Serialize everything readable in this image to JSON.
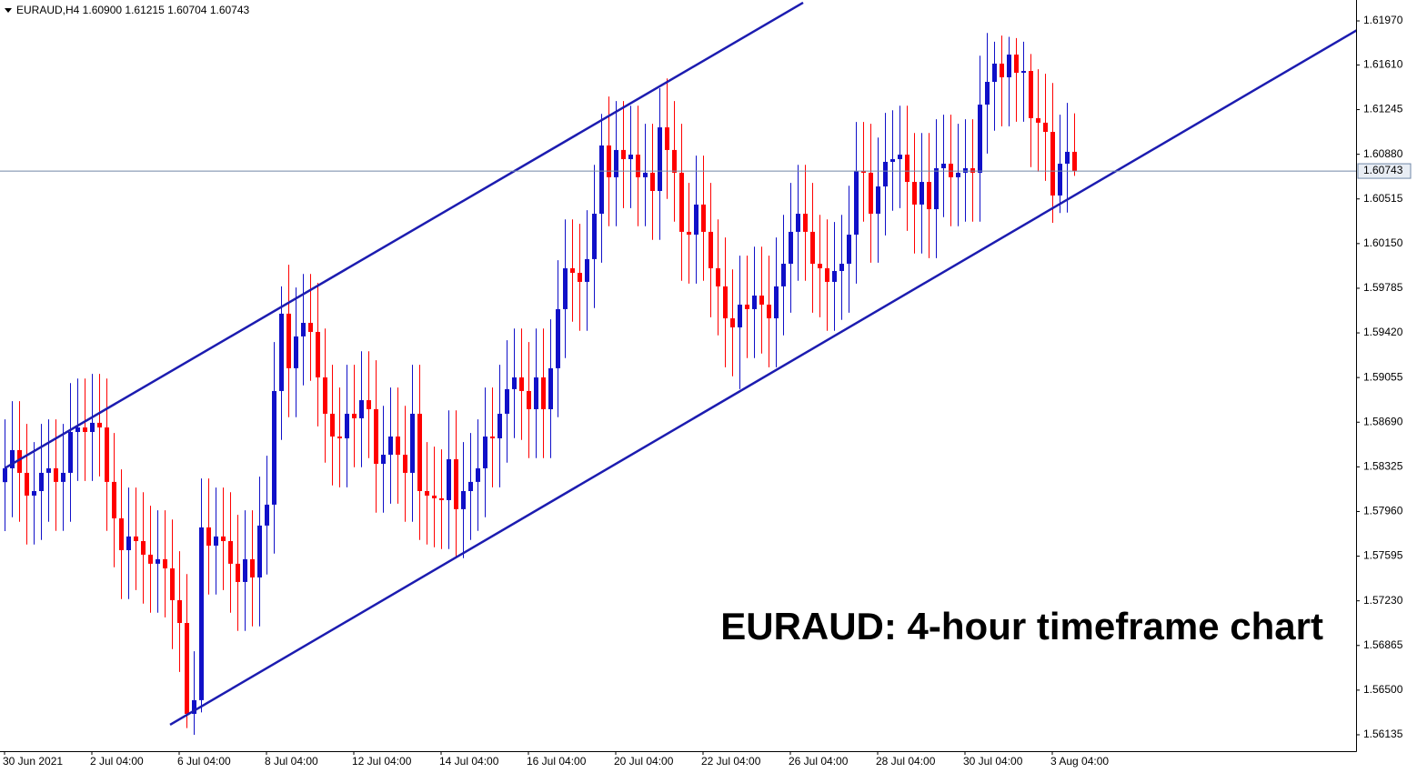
{
  "chart_data": {
    "type": "candlestick",
    "header": "EURAUD,H4  1.60900 1.61215 1.60704 1.60743",
    "annotation": "EURAUD: 4-hour timeframe chart",
    "bull_color": "#1010c8",
    "bear_color": "#ff0000",
    "trendline_color": "#1c1cb0",
    "ylim": [
      1.56001,
      1.62141
    ],
    "yticks": [
      {
        "value": 1.6197,
        "label": "1.61970"
      },
      {
        "value": 1.6161,
        "label": "1.61610"
      },
      {
        "value": 1.61245,
        "label": "1.61245"
      },
      {
        "value": 1.6088,
        "label": "1.60880"
      },
      {
        "value": 1.60515,
        "label": "1.60515"
      },
      {
        "value": 1.6015,
        "label": "1.60150"
      },
      {
        "value": 1.59785,
        "label": "1.59785"
      },
      {
        "value": 1.5942,
        "label": "1.59420"
      },
      {
        "value": 1.59055,
        "label": "1.59055"
      },
      {
        "value": 1.5869,
        "label": "1.58690"
      },
      {
        "value": 1.58325,
        "label": "1.58325"
      },
      {
        "value": 1.5796,
        "label": "1.57960"
      },
      {
        "value": 1.57595,
        "label": "1.57595"
      },
      {
        "value": 1.5723,
        "label": "1.57230"
      },
      {
        "value": 1.56865,
        "label": "1.56865"
      },
      {
        "value": 1.565,
        "label": "1.56500"
      },
      {
        "value": 1.56135,
        "label": "1.56135"
      }
    ],
    "current_price": {
      "value": 1.60743,
      "label": "1.60743"
    },
    "current_price_color": "#7088a8",
    "categories": [
      "30 Jun 2021",
      null,
      null,
      null,
      null,
      null,
      null,
      null,
      null,
      null,
      null,
      null,
      "2 Jul 04:00",
      null,
      null,
      null,
      null,
      null,
      null,
      null,
      null,
      null,
      null,
      null,
      "6 Jul 04:00",
      null,
      null,
      null,
      null,
      null,
      null,
      null,
      null,
      null,
      null,
      null,
      "8 Jul 04:00",
      null,
      null,
      null,
      null,
      null,
      null,
      null,
      null,
      null,
      null,
      null,
      "12 Jul 04:00",
      null,
      null,
      null,
      null,
      null,
      null,
      null,
      null,
      null,
      null,
      null,
      "14 Jul 04:00",
      null,
      null,
      null,
      null,
      null,
      null,
      null,
      null,
      null,
      null,
      null,
      "16 Jul 04:00",
      null,
      null,
      null,
      null,
      null,
      null,
      null,
      null,
      null,
      null,
      null,
      "20 Jul 04:00",
      null,
      null,
      null,
      null,
      null,
      null,
      null,
      null,
      null,
      null,
      null,
      "22 Jul 04:00",
      null,
      null,
      null,
      null,
      null,
      null,
      null,
      null,
      null,
      null,
      null,
      "26 Jul 04:00",
      null,
      null,
      null,
      null,
      null,
      null,
      null,
      null,
      null,
      null,
      null,
      "28 Jul 04:00",
      null,
      null,
      null,
      null,
      null,
      null,
      null,
      null,
      null,
      null,
      null,
      "30 Jul 04:00",
      null,
      null,
      null,
      null,
      null,
      null,
      null,
      null,
      null,
      null,
      null,
      "3 Aug 04:00",
      null,
      null,
      null
    ],
    "open": [
      1.582,
      1.58313,
      1.58462,
      1.58276,
      1.5809,
      1.58127,
      1.58276,
      1.58313,
      1.58202,
      1.58276,
      1.5861,
      1.58647,
      1.5861,
      1.58685,
      1.58647,
      1.58202,
      1.57904,
      1.57644,
      1.57756,
      1.57718,
      1.57607,
      1.57533,
      1.5757,
      1.57495,
      1.57235,
      1.57049,
      1.56306,
      1.56418,
      1.5783,
      1.57681,
      1.57756,
      1.57718,
      1.57533,
      1.57384,
      1.5757,
      1.57421,
      1.57845,
      1.58016,
      1.58945,
      1.59577,
      1.59131,
      1.59391,
      1.59502,
      1.59428,
      1.59056,
      1.58759,
      1.58573,
      1.58558,
      1.58759,
      1.58722,
      1.5887,
      1.58796,
      1.5835,
      1.58424,
      1.58573,
      1.58424,
      1.58276,
      1.58759,
      1.58127,
      1.5809,
      1.58068,
      1.58053,
      1.58387,
      1.57979,
      1.58127,
      1.58202,
      1.58313,
      1.58573,
      1.58558,
      1.58759,
      1.5896,
      1.59056,
      1.58945,
      1.58796,
      1.59056,
      1.58796,
      1.59131,
      1.59614,
      1.59948,
      1.59911,
      1.59837,
      1.60023,
      1.60394,
      1.60952,
      1.60692,
      1.60915,
      1.6084,
      1.60877,
      1.60692,
      1.60729,
      1.6058,
      1.611,
      1.60915,
      1.60729,
      1.60246,
      1.60223,
      1.60469,
      1.60246,
      1.59948,
      1.598,
      1.59539,
      1.59465,
      1.59651,
      1.59614,
      1.59725,
      1.59651,
      1.59539,
      1.598,
      1.59985,
      1.60246,
      1.60394,
      1.60246,
      1.59985,
      1.59948,
      1.59837,
      1.59926,
      1.59985,
      1.60223,
      1.60744,
      1.60729,
      1.60394,
      1.60617,
      1.60818,
      1.6084,
      1.60877,
      1.60654,
      1.60469,
      1.60654,
      1.60431,
      1.60766,
      1.60803,
      1.60692,
      1.60729,
      1.60766,
      1.60729,
      1.61286,
      1.61472,
      1.61621,
      1.61509,
      1.61695,
      1.61546,
      1.61561,
      1.61175,
      1.61138,
      1.61063,
      1.60543,
      1.60803,
      1.609
    ],
    "high": [
      1.58713,
      1.58862,
      1.58862,
      1.58676,
      1.58527,
      1.58676,
      1.58713,
      1.58713,
      1.58676,
      1.5901,
      1.59047,
      1.59047,
      1.59085,
      1.59085,
      1.59047,
      1.58602,
      1.58304,
      1.58156,
      1.58156,
      1.58118,
      1.58007,
      1.5797,
      1.5797,
      1.57895,
      1.57635,
      1.57449,
      1.56818,
      1.5823,
      1.5823,
      1.58156,
      1.58156,
      1.58118,
      1.57933,
      1.5797,
      1.5797,
      1.58245,
      1.58416,
      1.59345,
      1.598,
      1.59977,
      1.59791,
      1.59902,
      1.59902,
      1.59828,
      1.59456,
      1.59159,
      1.58973,
      1.59159,
      1.59159,
      1.5927,
      1.5927,
      1.59196,
      1.58824,
      1.58973,
      1.58973,
      1.58824,
      1.59159,
      1.59159,
      1.58527,
      1.5849,
      1.58468,
      1.58787,
      1.58787,
      1.58527,
      1.58602,
      1.58713,
      1.58973,
      1.58973,
      1.59159,
      1.5936,
      1.59456,
      1.59456,
      1.59345,
      1.59456,
      1.59456,
      1.59531,
      1.60014,
      1.60348,
      1.60348,
      1.60311,
      1.60423,
      1.60794,
      1.6121,
      1.61352,
      1.61315,
      1.61315,
      1.61277,
      1.61277,
      1.61129,
      1.61129,
      1.6142,
      1.615,
      1.61315,
      1.61129,
      1.60646,
      1.60869,
      1.60869,
      1.60646,
      1.60348,
      1.602,
      1.59939,
      1.60051,
      1.60051,
      1.60125,
      1.60125,
      1.60051,
      1.602,
      1.60385,
      1.60646,
      1.60794,
      1.60794,
      1.60646,
      1.60385,
      1.60348,
      1.60326,
      1.60385,
      1.60623,
      1.61144,
      1.61144,
      1.61129,
      1.61017,
      1.61218,
      1.6124,
      1.61277,
      1.61277,
      1.61054,
      1.61054,
      1.61054,
      1.61166,
      1.61203,
      1.61203,
      1.61129,
      1.61166,
      1.61166,
      1.61686,
      1.61872,
      1.618,
      1.6185,
      1.6184,
      1.6183,
      1.618,
      1.617,
      1.61575,
      1.61538,
      1.61463,
      1.61203,
      1.613,
      1.61215
    ],
    "low": [
      1.578,
      1.57913,
      1.57876,
      1.5769,
      1.5769,
      1.57727,
      1.57876,
      1.57802,
      1.57802,
      1.57876,
      1.5821,
      1.5821,
      1.5821,
      1.58247,
      1.57802,
      1.57504,
      1.57244,
      1.57244,
      1.57318,
      1.57207,
      1.57133,
      1.57133,
      1.57095,
      1.56835,
      1.56649,
      1.5619,
      1.56135,
      1.56318,
      1.57281,
      1.57281,
      1.57318,
      1.57133,
      1.56984,
      1.56984,
      1.57021,
      1.57021,
      1.57445,
      1.57616,
      1.58545,
      1.58731,
      1.58731,
      1.58991,
      1.59028,
      1.58656,
      1.58359,
      1.58173,
      1.58158,
      1.58158,
      1.58322,
      1.58322,
      1.58396,
      1.5795,
      1.5795,
      1.58024,
      1.58024,
      1.57876,
      1.57876,
      1.57727,
      1.5769,
      1.57668,
      1.57653,
      1.57653,
      1.57579,
      1.57579,
      1.57727,
      1.57802,
      1.57913,
      1.58158,
      1.58158,
      1.58359,
      1.5856,
      1.58545,
      1.58396,
      1.58396,
      1.58396,
      1.58396,
      1.58731,
      1.59214,
      1.59511,
      1.59437,
      1.59437,
      1.59623,
      1.59994,
      1.60292,
      1.60292,
      1.6044,
      1.6044,
      1.60292,
      1.60292,
      1.6018,
      1.6018,
      1.60515,
      1.60329,
      1.59846,
      1.59823,
      1.59823,
      1.59846,
      1.59548,
      1.594,
      1.59139,
      1.59065,
      1.5896,
      1.59214,
      1.59214,
      1.59251,
      1.59139,
      1.59139,
      1.594,
      1.59585,
      1.59846,
      1.59846,
      1.59585,
      1.59548,
      1.59437,
      1.59437,
      1.59526,
      1.59585,
      1.59823,
      1.60329,
      1.59994,
      1.59994,
      1.60217,
      1.60418,
      1.6044,
      1.60254,
      1.60069,
      1.60069,
      1.60031,
      1.60031,
      1.60366,
      1.60292,
      1.60292,
      1.60329,
      1.60329,
      1.60329,
      1.60886,
      1.61072,
      1.61109,
      1.61109,
      1.61146,
      1.61146,
      1.60775,
      1.60738,
      1.60663,
      1.6032,
      1.604,
      1.60403,
      1.60704
    ],
    "close": [
      1.58313,
      1.58462,
      1.58276,
      1.5809,
      1.58127,
      1.58276,
      1.58313,
      1.58202,
      1.58276,
      1.5861,
      1.58647,
      1.5861,
      1.58685,
      1.58647,
      1.58202,
      1.57904,
      1.57644,
      1.57756,
      1.57718,
      1.57607,
      1.57533,
      1.5757,
      1.57495,
      1.57235,
      1.57049,
      1.56306,
      1.56418,
      1.5783,
      1.57681,
      1.57756,
      1.57718,
      1.57533,
      1.57384,
      1.5757,
      1.57421,
      1.57845,
      1.58016,
      1.58945,
      1.59577,
      1.59131,
      1.59391,
      1.59502,
      1.59428,
      1.59056,
      1.58759,
      1.58573,
      1.58558,
      1.58759,
      1.58722,
      1.5887,
      1.58796,
      1.5835,
      1.58424,
      1.58573,
      1.58424,
      1.58276,
      1.58759,
      1.58127,
      1.5809,
      1.58068,
      1.58053,
      1.58387,
      1.57979,
      1.58127,
      1.58202,
      1.58313,
      1.58573,
      1.58558,
      1.58759,
      1.5896,
      1.59056,
      1.58945,
      1.58796,
      1.59056,
      1.58796,
      1.59131,
      1.59614,
      1.59948,
      1.59911,
      1.59837,
      1.60023,
      1.60394,
      1.60952,
      1.60692,
      1.60915,
      1.6084,
      1.60877,
      1.60692,
      1.60729,
      1.6058,
      1.611,
      1.60915,
      1.60729,
      1.60246,
      1.60223,
      1.60469,
      1.60246,
      1.59948,
      1.598,
      1.59539,
      1.59465,
      1.59651,
      1.59614,
      1.59725,
      1.59651,
      1.59539,
      1.598,
      1.59985,
      1.60246,
      1.60394,
      1.60246,
      1.59985,
      1.59948,
      1.59837,
      1.59926,
      1.59985,
      1.60223,
      1.60744,
      1.60729,
      1.60394,
      1.60617,
      1.60818,
      1.6084,
      1.60877,
      1.60654,
      1.60469,
      1.60654,
      1.60431,
      1.60766,
      1.60803,
      1.60692,
      1.60729,
      1.60766,
      1.60729,
      1.61286,
      1.61472,
      1.61621,
      1.61509,
      1.61695,
      1.61546,
      1.61561,
      1.61175,
      1.61138,
      1.61063,
      1.60543,
      1.60803,
      1.609,
      1.60743
    ],
    "trendlines": [
      {
        "x": [
          0,
          109.75
        ],
        "y": [
          1.58313,
          1.62119
        ]
      },
      {
        "x": [
          22.75,
          185.9
        ],
        "y": [
          1.56217,
          1.61896
        ]
      }
    ]
  }
}
